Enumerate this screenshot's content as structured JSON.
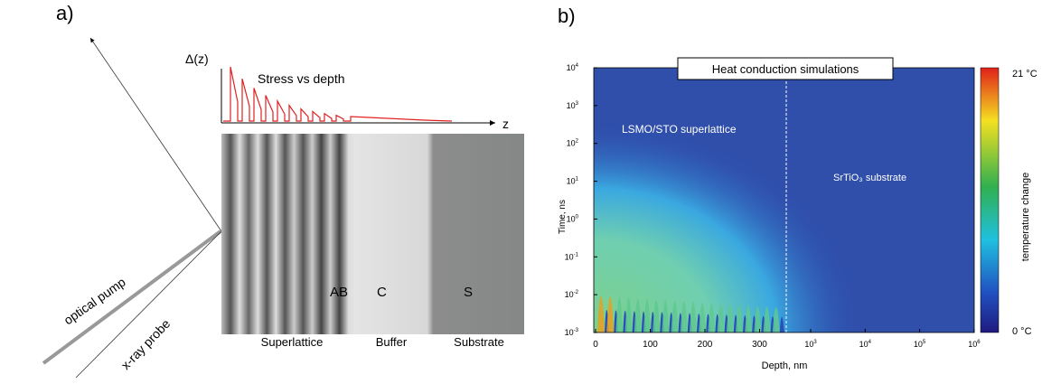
{
  "panel_a": {
    "label": "a)",
    "delta_label": "Δ(z)",
    "plot_title": "Stress vs depth",
    "z_label": "z",
    "pump_label": "optical pump",
    "probe_label": "x-ray probe",
    "layer_marks": [
      "AB",
      "C",
      "S"
    ],
    "regions": [
      "Superlattice",
      "Buffer",
      "Substrate"
    ]
  },
  "panel_b": {
    "label": "b)",
    "title": "Heat conduction simulations",
    "region_left": "LSMO/STO superlattice",
    "region_right": "SrTiO₃ substrate",
    "y_label": "Time, ns",
    "x_label": "Depth, nm",
    "colorbar_label": "temperature change",
    "colorbar_max": "21 °C",
    "colorbar_min": "0 °C",
    "yticks": [
      {
        "base": "10",
        "exp": "4"
      },
      {
        "base": "10",
        "exp": "3"
      },
      {
        "base": "10",
        "exp": "2"
      },
      {
        "base": "10",
        "exp": "1"
      },
      {
        "base": "10",
        "exp": "0"
      },
      {
        "base": "10",
        "exp": "-1"
      },
      {
        "base": "10",
        "exp": "-2"
      },
      {
        "base": "10",
        "exp": "-3"
      }
    ],
    "xticks_linear": [
      "0",
      "100",
      "200",
      "300"
    ],
    "xticks_log": [
      {
        "base": "10",
        "exp": "3"
      },
      {
        "base": "10",
        "exp": "4"
      },
      {
        "base": "10",
        "exp": "5"
      },
      {
        "base": "10",
        "exp": "6"
      }
    ]
  }
}
